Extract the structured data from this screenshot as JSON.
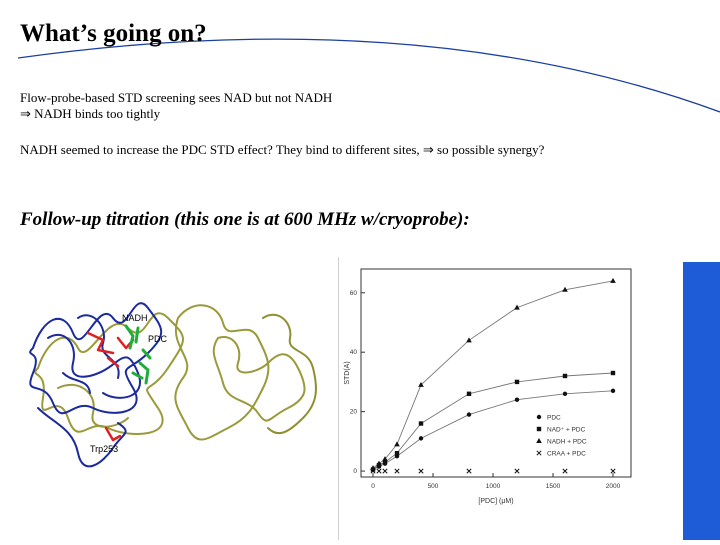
{
  "slide": {
    "title": "What’s going on?",
    "bullets": [
      "Flow-probe-based STD screening sees NAD but not NADH",
      "⇒ NADH binds too tightly",
      "NADH seemed to increase the PDC STD effect? They bind to different sites,  ⇒ so possible synergy?"
    ],
    "subtitle": "Follow-up titration (this one is at 600 MHz w/cryoprobe):"
  },
  "protein_image": {
    "labels": [
      "NADH",
      "PDC",
      "Trp253"
    ],
    "colors": {
      "backbone_blue": "#1b2a9e",
      "backbone_olive": "#9a9a3a",
      "ligand_red": "#e02020",
      "ligand_green": "#1fae3a"
    }
  },
  "chart_data": {
    "type": "scatter",
    "xlabel": "[PDC] (μM)",
    "ylabel": "STD(A)",
    "xlim": [
      -100,
      2150
    ],
    "ylim": [
      -2,
      68
    ],
    "xticks": [
      0,
      500,
      1000,
      1500,
      2000
    ],
    "yticks": [
      0,
      20,
      40,
      60
    ],
    "legend_position": "bottom-right",
    "series": [
      {
        "name": "PDC",
        "marker": "circle",
        "x": [
          0,
          50,
          100,
          200,
          400,
          800,
          1200,
          1600,
          2000
        ],
        "y": [
          0.5,
          1.5,
          2.5,
          5,
          11,
          19,
          24,
          26,
          27
        ]
      },
      {
        "name": "NAD⁺ + PDC",
        "marker": "square",
        "x": [
          0,
          50,
          100,
          200,
          400,
          800,
          1200,
          1600,
          2000
        ],
        "y": [
          0.5,
          2,
          3,
          6,
          16,
          26,
          30,
          32,
          33
        ]
      },
      {
        "name": "NADH + PDC",
        "marker": "triangle",
        "x": [
          0,
          50,
          100,
          200,
          400,
          800,
          1200,
          1600,
          2000
        ],
        "y": [
          1,
          2.5,
          4,
          9,
          29,
          44,
          55,
          61,
          64
        ]
      },
      {
        "name": "CRAA + PDC",
        "marker": "x",
        "x": [
          0,
          50,
          100,
          200,
          400,
          800,
          1200,
          1600,
          2000
        ],
        "y": [
          0,
          0,
          0,
          0,
          0,
          0,
          0,
          0,
          0
        ]
      }
    ]
  }
}
